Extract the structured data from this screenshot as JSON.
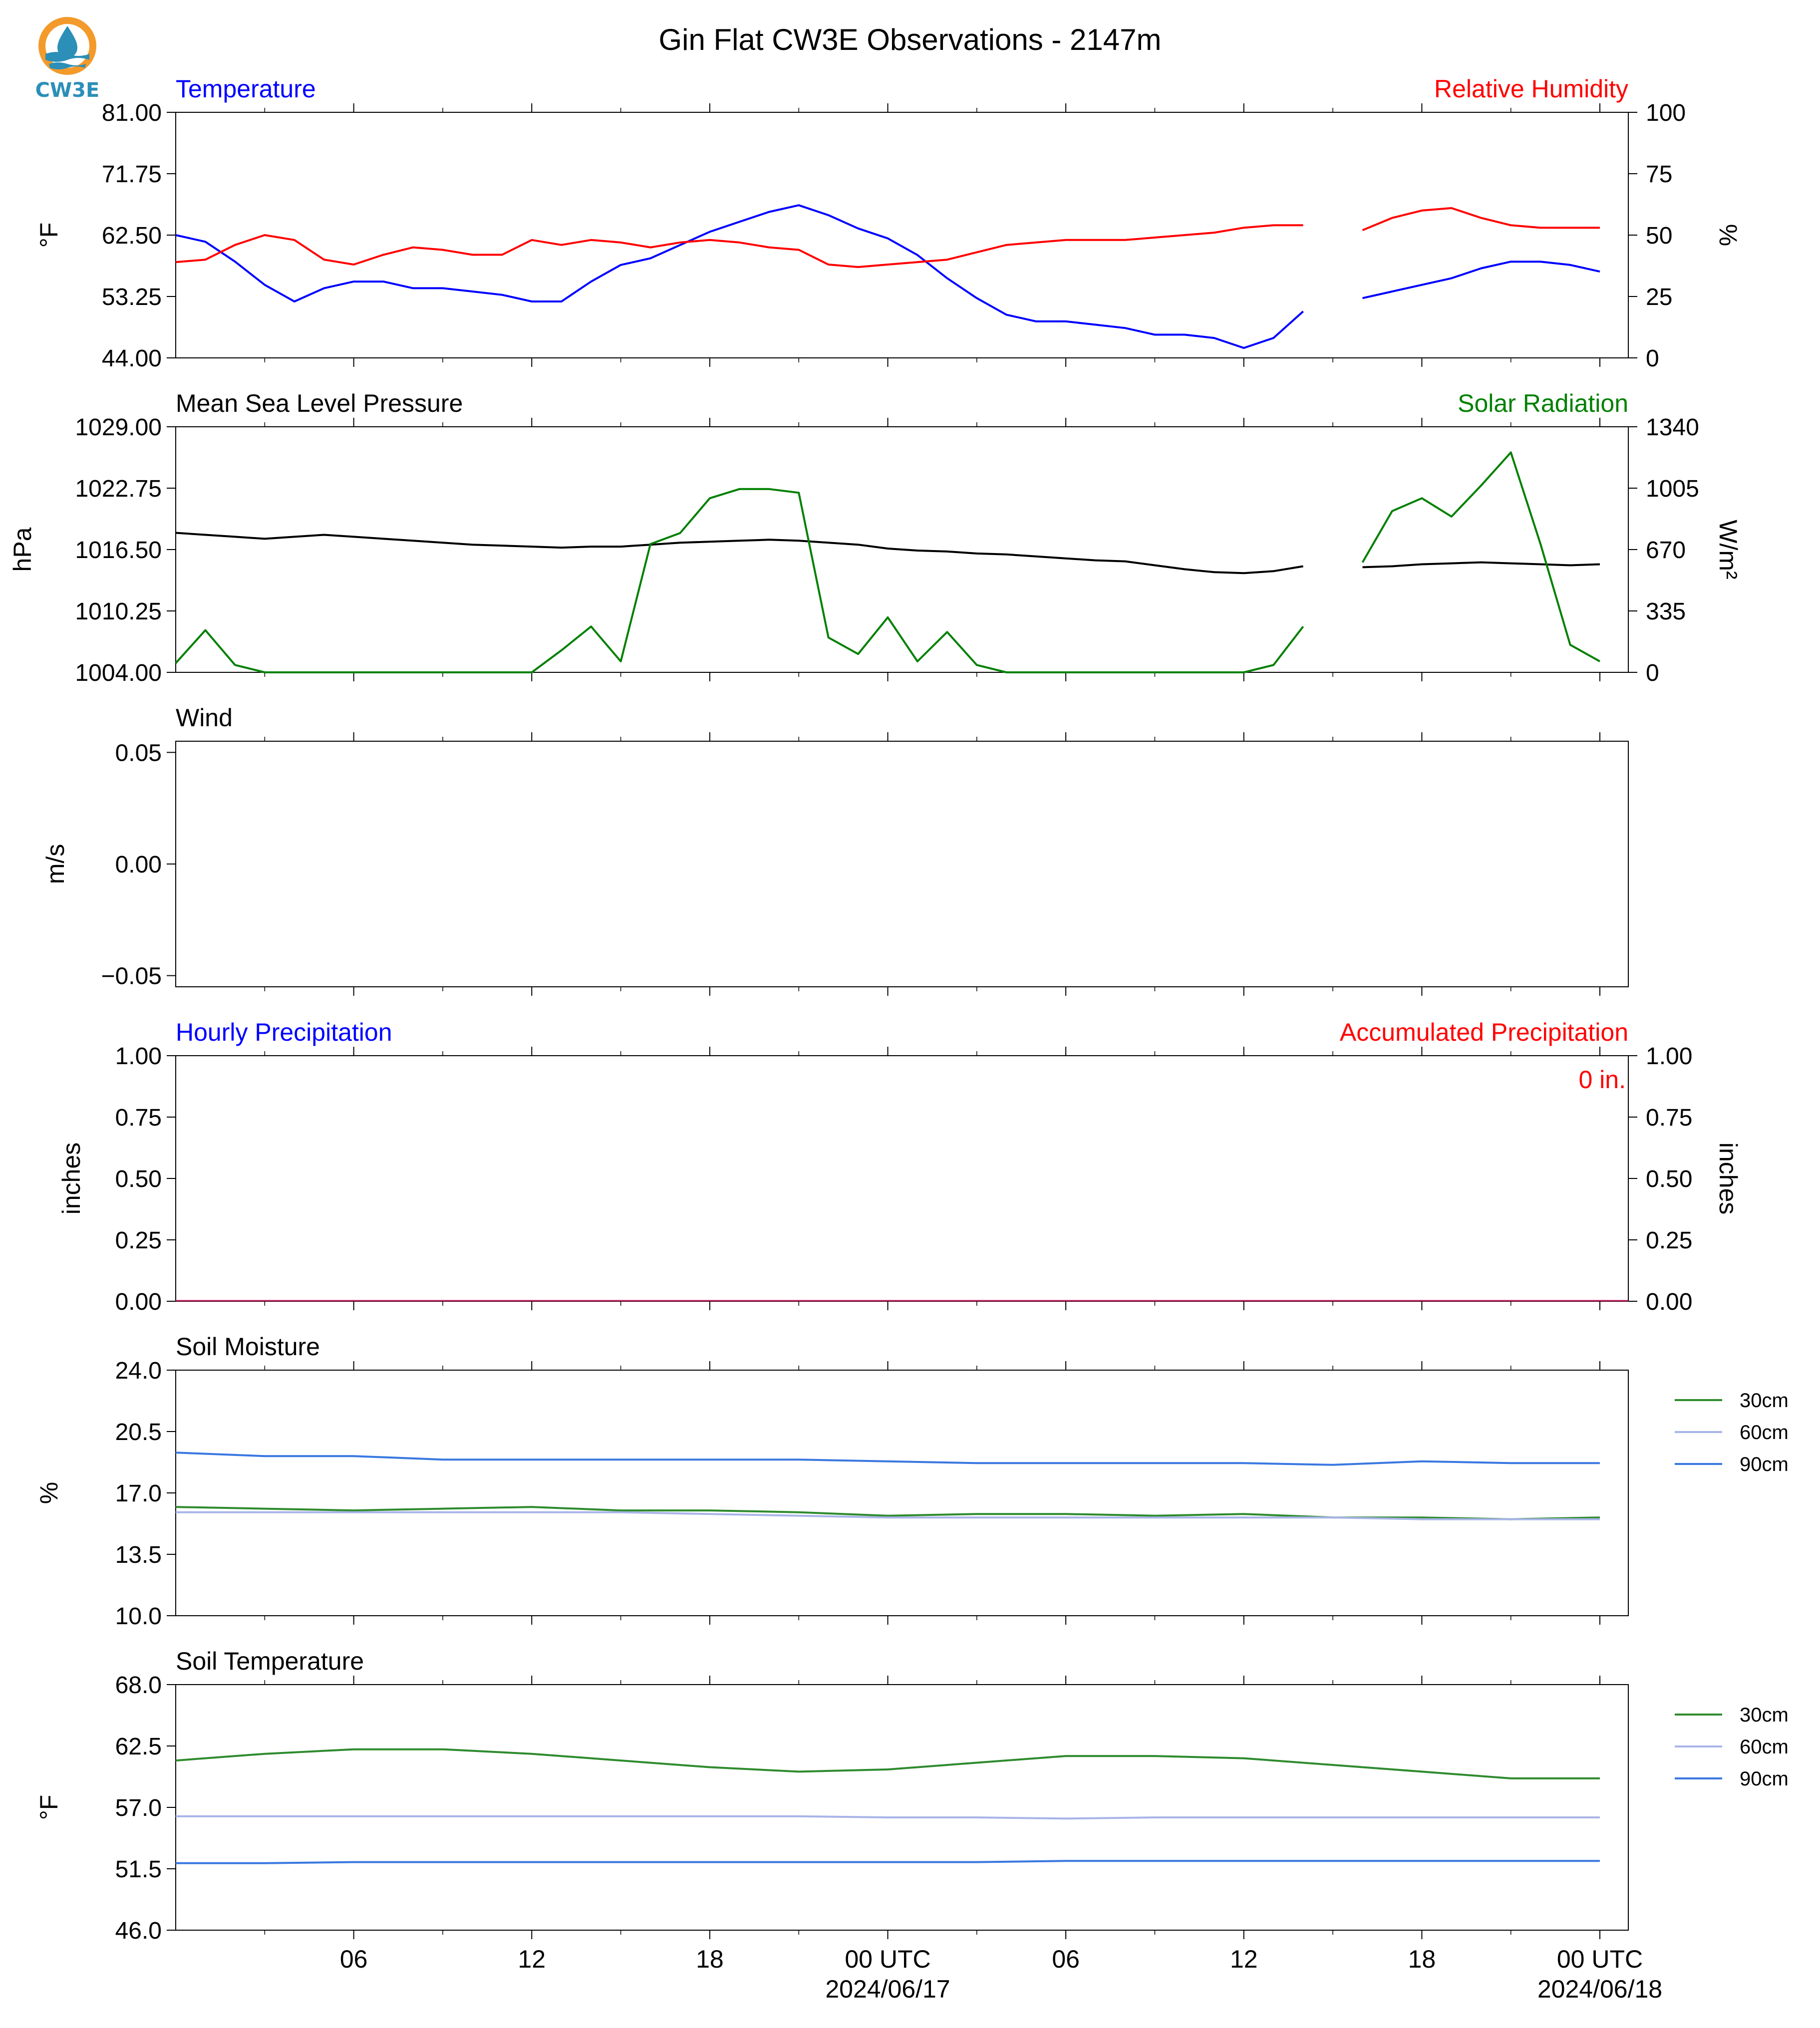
{
  "title": "Gin Flat CW3E Observations - 2147m",
  "logo": {
    "text": "CW3E",
    "colors": {
      "orange": "#f39a2b",
      "blue": "#2b8fb8"
    }
  },
  "x_axis": {
    "tick_labels": [
      "06",
      "12",
      "18",
      "00 UTC",
      "06",
      "12",
      "18",
      "00 UTC"
    ],
    "date_labels": [
      "2024/06/17",
      "2024/06/18"
    ]
  },
  "chart_data": [
    {
      "type": "line",
      "title_left": "Temperature",
      "title_right": "Relative Humidity",
      "left_axis": {
        "label": "°F",
        "ylim": [
          44.0,
          81.0
        ],
        "ticks": [
          "44.00",
          "53.25",
          "62.50",
          "71.75",
          "81.00"
        ],
        "color": "#0000ff"
      },
      "right_axis": {
        "label": "%",
        "ylim": [
          0,
          100
        ],
        "ticks": [
          "0",
          "25",
          "50",
          "75",
          "100"
        ],
        "color": "#ff0000"
      },
      "x_hours": [
        0,
        1,
        2,
        3,
        4,
        5,
        6,
        7,
        8,
        9,
        10,
        11,
        12,
        13,
        14,
        15,
        16,
        17,
        18,
        19,
        20,
        21,
        22,
        23,
        24,
        25,
        26,
        27,
        28,
        29,
        30,
        31,
        32,
        33,
        34,
        35,
        36,
        37,
        38,
        39,
        40,
        41,
        42,
        43,
        44,
        45,
        46,
        47,
        48
      ],
      "series": [
        {
          "name": "Temperature",
          "axis": "left",
          "color": "#0000ff",
          "values": [
            62.5,
            61.5,
            58.5,
            55.0,
            52.5,
            54.5,
            55.5,
            55.5,
            54.5,
            54.5,
            54.0,
            53.5,
            52.5,
            52.5,
            55.5,
            58.0,
            59.0,
            61.0,
            63.0,
            64.5,
            66.0,
            67.0,
            65.5,
            63.5,
            62.0,
            59.5,
            56.0,
            53.0,
            50.5,
            49.5,
            49.5,
            49.0,
            48.5,
            47.5,
            47.5,
            47.0,
            45.5,
            47.0,
            51.0,
            null,
            53.0,
            54.0,
            55.0,
            56.0,
            57.5,
            58.5,
            58.5,
            58.0,
            57.0
          ]
        },
        {
          "name": "Relative Humidity",
          "axis": "right",
          "color": "#ff0000",
          "values": [
            39,
            40,
            46,
            50,
            48,
            40,
            38,
            42,
            45,
            44,
            42,
            42,
            48,
            46,
            48,
            47,
            45,
            47,
            48,
            47,
            45,
            44,
            38,
            37,
            38,
            39,
            40,
            43,
            46,
            47,
            48,
            48,
            48,
            49,
            50,
            51,
            53,
            54,
            54,
            null,
            52,
            57,
            60,
            61,
            57,
            54,
            53,
            53,
            53
          ]
        }
      ]
    },
    {
      "type": "line",
      "title_left": "Mean Sea Level Pressure",
      "title_right": "Solar Radiation",
      "left_axis": {
        "label": "hPa",
        "ylim": [
          1004.0,
          1029.0
        ],
        "ticks": [
          "1004.00",
          "1010.25",
          "1016.50",
          "1022.75",
          "1029.00"
        ],
        "color": "#000000"
      },
      "right_axis": {
        "label": "W/m²",
        "ylim": [
          0,
          1340
        ],
        "ticks": [
          "0",
          "335",
          "670",
          "1005",
          "1340"
        ],
        "color": "#008000"
      },
      "x_hours": [
        0,
        1,
        2,
        3,
        4,
        5,
        6,
        7,
        8,
        9,
        10,
        11,
        12,
        13,
        14,
        15,
        16,
        17,
        18,
        19,
        20,
        21,
        22,
        23,
        24,
        25,
        26,
        27,
        28,
        29,
        30,
        31,
        32,
        33,
        34,
        35,
        36,
        37,
        38,
        39,
        40,
        41,
        42,
        43,
        44,
        45,
        46,
        47,
        48
      ],
      "series": [
        {
          "name": "Mean Sea Level Pressure",
          "axis": "left",
          "color": "#000000",
          "values": [
            1018.2,
            1018.0,
            1017.8,
            1017.6,
            1017.8,
            1018.0,
            1017.8,
            1017.6,
            1017.4,
            1017.2,
            1017.0,
            1016.9,
            1016.8,
            1016.7,
            1016.8,
            1016.8,
            1017.0,
            1017.2,
            1017.3,
            1017.4,
            1017.5,
            1017.4,
            1017.2,
            1017.0,
            1016.6,
            1016.4,
            1016.3,
            1016.1,
            1016.0,
            1015.8,
            1015.6,
            1015.4,
            1015.3,
            1014.9,
            1014.5,
            1014.2,
            1014.1,
            1014.3,
            1014.8,
            null,
            1014.7,
            1014.8,
            1015.0,
            1015.1,
            1015.2,
            1015.1,
            1015.0,
            1014.9,
            1015.0
          ]
        },
        {
          "name": "Solar Radiation",
          "axis": "right",
          "color": "#008000",
          "values": [
            50,
            230,
            40,
            0,
            0,
            0,
            0,
            0,
            0,
            0,
            0,
            0,
            0,
            120,
            250,
            60,
            700,
            760,
            950,
            1000,
            1000,
            980,
            190,
            100,
            300,
            60,
            220,
            40,
            0,
            0,
            0,
            0,
            0,
            0,
            0,
            0,
            0,
            40,
            250,
            null,
            600,
            880,
            950,
            850,
            1020,
            1200,
            700,
            150,
            60
          ]
        }
      ]
    },
    {
      "type": "line",
      "title_left": "Wind",
      "left_axis": {
        "label": "m/s",
        "ylim": [
          -0.055,
          0.055
        ],
        "ticks": [
          "−0.05",
          "0.00",
          "0.05"
        ]
      },
      "series": []
    },
    {
      "type": "bar",
      "title_left": "Hourly Precipitation",
      "title_right": "Accumulated Precipitation",
      "annotation": "0 in.",
      "left_axis": {
        "label": "inches",
        "ylim": [
          0,
          1
        ],
        "ticks": [
          "0.00",
          "0.25",
          "0.50",
          "0.75",
          "1.00"
        ],
        "color": "#0000ff"
      },
      "right_axis": {
        "label": "inches",
        "ylim": [
          0,
          1
        ],
        "ticks": [
          "0.00",
          "0.25",
          "0.50",
          "0.75",
          "1.00"
        ],
        "color": "#ff0000"
      },
      "series": [
        {
          "name": "Hourly Precipitation",
          "axis": "left",
          "color": "#0000ff",
          "values": [
            0
          ]
        },
        {
          "name": "Accumulated Precipitation",
          "axis": "right",
          "color": "#ff0000",
          "values": [
            0
          ]
        }
      ]
    },
    {
      "type": "line",
      "title_left": "Soil Moisture",
      "left_axis": {
        "label": "%",
        "ylim": [
          10.0,
          24.0
        ],
        "ticks": [
          "10.0",
          "13.5",
          "17.0",
          "20.5",
          "24.0"
        ]
      },
      "legend": {
        "placement": "outside-right"
      },
      "x_hours": [
        0,
        3,
        6,
        9,
        12,
        15,
        18,
        21,
        24,
        27,
        30,
        33,
        36,
        39,
        42,
        45,
        48
      ],
      "series": [
        {
          "name": "30cm",
          "color": "#2e8b2e",
          "values": [
            16.2,
            16.1,
            16.0,
            16.1,
            16.2,
            16.0,
            16.0,
            15.9,
            15.7,
            15.8,
            15.8,
            15.7,
            15.8,
            15.6,
            15.6,
            15.5,
            15.6
          ]
        },
        {
          "name": "60cm",
          "color": "#a8b4e8",
          "values": [
            15.9,
            15.9,
            15.9,
            15.9,
            15.9,
            15.9,
            15.8,
            15.7,
            15.6,
            15.6,
            15.6,
            15.6,
            15.6,
            15.6,
            15.5,
            15.5,
            15.5
          ]
        },
        {
          "name": "90cm",
          "color": "#3a78e0",
          "values": [
            19.3,
            19.1,
            19.1,
            18.9,
            18.9,
            18.9,
            18.9,
            18.9,
            18.8,
            18.7,
            18.7,
            18.7,
            18.7,
            18.6,
            18.8,
            18.7,
            18.7
          ]
        }
      ]
    },
    {
      "type": "line",
      "title_left": "Soil Temperature",
      "left_axis": {
        "label": "°F",
        "ylim": [
          46.0,
          68.0
        ],
        "ticks": [
          "46.0",
          "51.5",
          "57.0",
          "62.5",
          "68.0"
        ]
      },
      "legend": {
        "placement": "outside-right"
      },
      "x_hours": [
        0,
        3,
        6,
        9,
        12,
        15,
        18,
        21,
        24,
        27,
        30,
        33,
        36,
        39,
        42,
        45,
        48
      ],
      "series": [
        {
          "name": "30cm",
          "color": "#2e8b2e",
          "values": [
            61.2,
            61.8,
            62.2,
            62.2,
            61.8,
            61.2,
            60.6,
            60.2,
            60.4,
            61.0,
            61.6,
            61.6,
            61.4,
            60.8,
            60.2,
            59.6,
            59.6
          ]
        },
        {
          "name": "60cm",
          "color": "#a8b4e8",
          "values": [
            56.2,
            56.2,
            56.2,
            56.2,
            56.2,
            56.2,
            56.2,
            56.2,
            56.1,
            56.1,
            56.0,
            56.1,
            56.1,
            56.1,
            56.1,
            56.1,
            56.1
          ]
        },
        {
          "name": "90cm",
          "color": "#3a78e0",
          "values": [
            52.0,
            52.0,
            52.1,
            52.1,
            52.1,
            52.1,
            52.1,
            52.1,
            52.1,
            52.1,
            52.2,
            52.2,
            52.2,
            52.2,
            52.2,
            52.2,
            52.2
          ]
        }
      ]
    }
  ]
}
